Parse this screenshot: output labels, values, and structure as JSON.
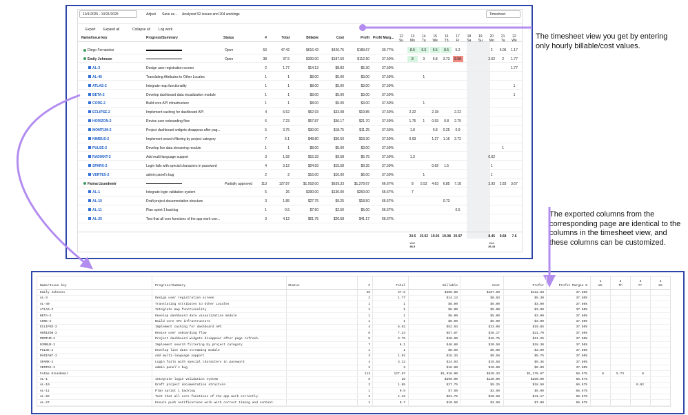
{
  "top": {
    "toolbar": {
      "date_range": "10/1/2025 - 10/31/2025",
      "adjust": "Adjust",
      "save": "Save as...",
      "status": "Analyzed 92 issues and 204 worklogs",
      "view": "Timesheet"
    },
    "actions": [
      "Export",
      "Expand all",
      "Collapse all",
      "Log work"
    ],
    "columns": [
      "Name/Issue key",
      "Progress/Summary",
      "Status",
      "#",
      "Total",
      "Billable",
      "Cost",
      "Profit",
      "Profit Marg..."
    ],
    "day_headers": [
      {
        "date": 12,
        "day": "Su"
      },
      {
        "date": 13,
        "day": "Mo"
      },
      {
        "date": 14,
        "day": "Tu"
      },
      {
        "date": 15,
        "day": "We"
      },
      {
        "date": 16,
        "day": "Th"
      },
      {
        "date": 17,
        "day": "Fr"
      },
      {
        "date": 18,
        "day": "Sa"
      },
      {
        "date": 19,
        "day": "Su"
      },
      {
        "date": 20,
        "day": "Mo"
      },
      {
        "date": 21,
        "day": "Tu"
      },
      {
        "date": 22,
        "day": "We"
      }
    ],
    "people": [
      {
        "name": "Diego Fernandez",
        "status": "Open",
        "count": 53,
        "total": 47.42,
        "billable": "$616.42",
        "cost": "$426.75",
        "profit": "$189.67",
        "margin": "30.77%",
        "days": [
          null,
          8.5,
          6.5,
          6.5,
          8.5,
          5.2,
          null,
          null,
          2,
          5.05,
          1.17
        ],
        "day_colors": [
          null,
          "#d6f5e1",
          "#d6f5e1",
          "#d6f5e1",
          "#d6f5e1",
          null,
          null,
          null,
          null,
          null,
          null
        ],
        "issues": []
      },
      {
        "name": "Emily Johnson",
        "status": "Open",
        "count": 38,
        "total": 37.5,
        "billable": "$300.00",
        "cost": "$187.50",
        "profit": "$112.50",
        "margin": "37.50%",
        "days": [
          null,
          8,
          3,
          6.8,
          3.73,
          8.58,
          null,
          null,
          2.62,
          2,
          1.77
        ],
        "day_colors": [
          null,
          "#d6f5e1",
          null,
          null,
          null,
          "#f08a80",
          null,
          null,
          null,
          null,
          null
        ],
        "issues": [
          {
            "key": "AL-3",
            "summary": "Design user registration screen",
            "count": 2,
            "total": 1.77,
            "billable": "$14.13",
            "cost": "$8.83",
            "profit": "$5.30",
            "margin": "37.50%",
            "days": [
              null,
              null,
              null,
              null,
              null,
              null,
              null,
              null,
              null,
              null,
              1.77
            ]
          },
          {
            "key": "AL-40",
            "summary": "Translating Attributes to Other Locales",
            "count": 1,
            "total": 1,
            "billable": "$8.00",
            "cost": "$5.00",
            "profit": "$3.00",
            "margin": "37.50%",
            "days": [
              null,
              null,
              1,
              null,
              null,
              null,
              null,
              null,
              null,
              null,
              null
            ]
          },
          {
            "key": "ATLAS-2",
            "summary": "Integrate map functionality",
            "count": 1,
            "total": 1,
            "billable": "$8.00",
            "cost": "$5.00",
            "profit": "$3.00",
            "margin": "37.50%",
            "days": [
              null,
              null,
              null,
              null,
              null,
              null,
              null,
              null,
              null,
              null,
              1
            ]
          },
          {
            "key": "BETA-2",
            "summary": "Develop dashboard data visualization module",
            "count": 1,
            "total": 1,
            "billable": "$8.00",
            "cost": "$5.00",
            "profit": "$3.00",
            "margin": "37.50%",
            "days": [
              null,
              null,
              null,
              null,
              null,
              null,
              null,
              null,
              null,
              null,
              1
            ]
          },
          {
            "key": "CORE-2",
            "summary": "Build core API infrastructure",
            "count": 1,
            "total": 1,
            "billable": "$8.00",
            "cost": "$5.00",
            "profit": "$3.00",
            "margin": "37.50%",
            "days": [
              null,
              null,
              1,
              null,
              null,
              null,
              null,
              null,
              null,
              null,
              null
            ]
          },
          {
            "key": "ECLIPSE-2",
            "summary": "Implement caching for dashboard API",
            "count": 4,
            "total": 6.62,
            "billable": "$52.93",
            "cost": "$33.08",
            "profit": "$19.85",
            "margin": "37.50%",
            "days": [
              null,
              2.22,
              null,
              2.18,
              null,
              2.22,
              null,
              null,
              null,
              null,
              null
            ]
          },
          {
            "key": "HORIZON-2",
            "summary": "Revise user onboarding flow",
            "count": 6,
            "total": 7.23,
            "billable": "$57.87",
            "cost": "$36.17",
            "profit": "$21.70",
            "margin": "37.50%",
            "days": [
              null,
              1.75,
              1,
              0.93,
              0.8,
              2.75,
              null,
              null,
              null,
              null,
              null
            ]
          },
          {
            "key": "MOMTUM-2",
            "summary": "Project dashboard widgets disappear after pag...",
            "count": 5,
            "total": 3.75,
            "billable": "$30.00",
            "cost": "$18.75",
            "profit": "$11.25",
            "margin": "37.50%",
            "days": [
              null,
              1.8,
              null,
              0.8,
              0.25,
              0.9,
              null,
              null,
              null,
              null,
              null
            ]
          },
          {
            "key": "NIMBUS-2",
            "summary": "Implement search filtering by project category",
            "count": 7,
            "total": 6.1,
            "billable": "$48.80",
            "cost": "$30.50",
            "profit": "$18.30",
            "margin": "37.50%",
            "days": [
              null,
              0.93,
              null,
              1.27,
              1.16,
              2.72,
              null,
              null,
              null,
              null,
              null
            ]
          },
          {
            "key": "PULSE-2",
            "summary": "Develop live data streaming module",
            "count": 1,
            "total": 1,
            "billable": "$8.00",
            "cost": "$5.00",
            "profit": "$3.00",
            "margin": "37.50%",
            "days": [
              null,
              null,
              null,
              null,
              null,
              null,
              null,
              null,
              null,
              1,
              null
            ]
          },
          {
            "key": "RADIANT-2",
            "summary": "Add multi-language support",
            "count": 3,
            "total": 1.92,
            "billable": "$15.33",
            "cost": "$9.58",
            "profit": "$5.75",
            "margin": "37.50%",
            "days": [
              null,
              1.3,
              null,
              null,
              null,
              null,
              null,
              null,
              0.62,
              null,
              null
            ]
          },
          {
            "key": "SPARK-2",
            "summary": "Login fails with special characters in password",
            "count": 4,
            "total": 3.12,
            "billable": "$24.93",
            "cost": "$15.58",
            "profit": "$9.35",
            "margin": "37.50%",
            "days": [
              null,
              null,
              null,
              0.62,
              1.5,
              null,
              null,
              null,
              1,
              null,
              null
            ]
          },
          {
            "key": "VERTEX-2",
            "summary": "admin panel's bug",
            "count": 2,
            "total": 2,
            "billable": "$16.00",
            "cost": "$10.00",
            "profit": "$6.00",
            "margin": "37.50%",
            "days": [
              null,
              null,
              1,
              null,
              null,
              null,
              null,
              null,
              1,
              null,
              null
            ]
          }
        ]
      },
      {
        "name": "Fatma Uzundemir",
        "status": "Partially approved",
        "count": 113,
        "total": 127.87,
        "billable": "$1,918.00",
        "cost": "$639.33",
        "profit": "$1,278.67",
        "margin": "66.67%",
        "days": [
          null,
          8,
          5.52,
          4.63,
          6.85,
          7.18,
          null,
          null,
          3.93,
          2.83,
          3.67
        ],
        "issues": [
          {
            "key": "AL-1",
            "summary": "Integrate login validation system",
            "count": 5,
            "total": 26,
            "billable": "$390.00",
            "cost": "$130.00",
            "profit": "$260.00",
            "margin": "66.67%",
            "days": [
              null,
              7,
              null,
              null,
              null,
              null,
              null,
              null,
              null,
              null,
              null
            ]
          },
          {
            "key": "AL-10",
            "summary": "Draft project documentation structure",
            "count": 3,
            "total": 1.85,
            "billable": "$27.75",
            "cost": "$9.25",
            "profit": "$18.50",
            "margin": "66.67%",
            "days": [
              null,
              null,
              null,
              null,
              0.73,
              null,
              null,
              null,
              null,
              null,
              null
            ]
          },
          {
            "key": "AL-11",
            "summary": "Plan sprint 1 backlog",
            "count": 1,
            "total": 0.5,
            "billable": "$7.50",
            "cost": "$2.50",
            "profit": "$5.00",
            "margin": "66.67%",
            "days": [
              null,
              null,
              null,
              null,
              null,
              0.5,
              null,
              null,
              null,
              null,
              null
            ]
          },
          {
            "key": "AL-25",
            "summary": "Test that all core functions of the app work corr...",
            "count": 3,
            "total": 4.12,
            "billable": "$61.75",
            "cost": "$20.58",
            "profit": "$41.17",
            "margin": "66.67%",
            "days": [
              null,
              null,
              null,
              null,
              null,
              null,
              null,
              null,
              null,
              null,
              null
            ]
          }
        ]
      }
    ],
    "footer": {
      "days": [
        null,
        24.5,
        15.02,
        19.93,
        19.08,
        20.97,
        null,
        null,
        8.45,
        9.68,
        7.6
      ],
      "weeks": [
        {
          "label": "Wk2",
          "total": 86.5
        },
        {
          "label": "Wk3",
          "total": 36.43
        }
      ]
    }
  },
  "export": {
    "columns": [
      "Name/Issue key",
      "Progress/Summary",
      "Status",
      "#",
      "Total",
      "Billable",
      "Cost",
      "Profit",
      "Profit Margin %"
    ],
    "day_headers": [
      {
        "date": 1,
        "day": "We"
      },
      {
        "date": 2,
        "day": "Th"
      },
      {
        "date": 3,
        "day": "Fr"
      },
      {
        "date": 4,
        "day": "Sa"
      }
    ],
    "rows": [
      [
        "Emily Johnson",
        null,
        null,
        38,
        37.5,
        "$300.00",
        "$187.50",
        "$112.50",
        "37.50%",
        null,
        null,
        null,
        null
      ],
      [
        "AL-3",
        "Design user registration screen",
        null,
        2,
        1.77,
        "$14.13",
        "$8.83",
        "$5.30",
        "37.50%",
        null,
        null,
        null,
        null
      ],
      [
        "AL-40",
        "Translating Attributes to Other Locales",
        null,
        1,
        1,
        "$8.00",
        "$5.00",
        "$3.00",
        "37.50%",
        null,
        null,
        null,
        null
      ],
      [
        "ATLAS-2",
        "Integrate map functionality",
        null,
        1,
        1,
        "$8.00",
        "$5.00",
        "$3.00",
        "37.50%",
        null,
        null,
        null,
        null
      ],
      [
        "BETA-2",
        "Develop dashboard data visualization module",
        null,
        1,
        1,
        "$8.00",
        "$5.00",
        "$3.00",
        "37.50%",
        null,
        null,
        null,
        null
      ],
      [
        "CORE-2",
        "Build core API infrastructure",
        null,
        1,
        1,
        "$8.00",
        "$5.00",
        "$3.00",
        "37.50%",
        null,
        null,
        null,
        null
      ],
      [
        "ECLIPSE-2",
        "Implement caching for dashboard API",
        null,
        4,
        6.62,
        "$52.93",
        "$33.08",
        "$19.85",
        "37.50%",
        null,
        null,
        null,
        null
      ],
      [
        "HORIZON-2",
        "Revise user onboarding flow",
        null,
        6,
        7.23,
        "$57.87",
        "$36.17",
        "$21.70",
        "37.50%",
        null,
        null,
        null,
        null
      ],
      [
        "MOMTUM-2",
        "Project dashboard widgets disappear after page refresh.",
        null,
        5,
        3.75,
        "$30.00",
        "$18.75",
        "$11.25",
        "37.50%",
        null,
        null,
        null,
        null
      ],
      [
        "NIMBUS-2",
        "Implement search filtering by project category",
        null,
        7,
        6.1,
        "$48.80",
        "$30.50",
        "$18.30",
        "37.50%",
        null,
        null,
        null,
        null
      ],
      [
        "PULSE-2",
        "Develop live data streaming module",
        null,
        1,
        1,
        "$8.00",
        "$5.00",
        "$3.00",
        "37.50%",
        null,
        null,
        null,
        null
      ],
      [
        "RADIANT-2",
        "Add multi-language support",
        null,
        3,
        1.92,
        "$15.33",
        "$9.58",
        "$5.75",
        "37.50%",
        null,
        null,
        null,
        null
      ],
      [
        "SPARK-2",
        "Login fails with special characters in password",
        null,
        4,
        3.12,
        "$24.93",
        "$15.58",
        "$9.35",
        "37.50%",
        null,
        null,
        null,
        null
      ],
      [
        "VERTEX-2",
        "admin panel's bug",
        null,
        2,
        2,
        "$16.00",
        "$10.00",
        "$6.00",
        "37.50%",
        null,
        null,
        null,
        null
      ],
      [
        "Fatma Uzundemir",
        null,
        null,
        113,
        127.87,
        "$1,918.00",
        "$639.33",
        "$1,278.67",
        "66.67%",
        8,
        5.73,
        8,
        null
      ],
      [
        "AL-1",
        "Integrate login validation system",
        null,
        5,
        26,
        "$390.00",
        "$130.00",
        "$260.00",
        "66.67%",
        null,
        null,
        null,
        null
      ],
      [
        "AL-10",
        "Draft project documentation structure",
        null,
        3,
        1.85,
        "$27.75",
        "$9.25",
        "$18.50",
        "66.67%",
        null,
        null,
        0.92,
        null
      ],
      [
        "AL-11",
        "Plan sprint 1 backlog",
        null,
        1,
        0.5,
        "$7.50",
        "$2.50",
        "$5.00",
        "66.67%",
        null,
        null,
        null,
        null
      ],
      [
        "AL-25",
        "Test that all core functions of the app work correctly.",
        null,
        3,
        4.12,
        "$61.75",
        "$20.58",
        "$41.17",
        "66.67%",
        null,
        null,
        null,
        null
      ],
      [
        "AL-27",
        "Ensure push notifications work with correct timing and content.",
        null,
        1,
        0.7,
        "$10.50",
        "$3.50",
        "$7.00",
        "66.67%",
        null,
        null,
        null,
        null
      ]
    ]
  },
  "callouts": [
    "The timesheet view you get by entering only hourly billable/cost values.",
    "The exported columns from the corresponding page are identical to the columns in the timesheet view, and these columns can be customized."
  ]
}
